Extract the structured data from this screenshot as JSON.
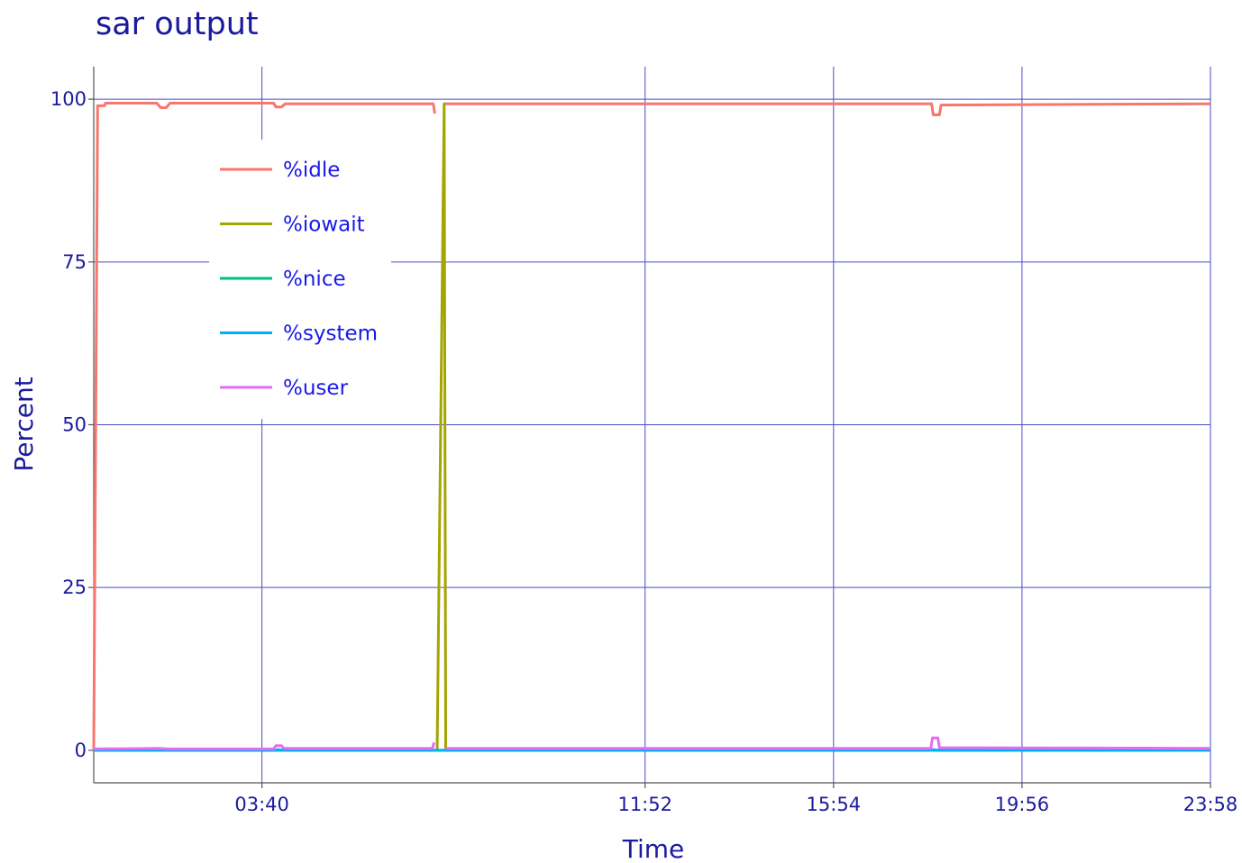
{
  "chart_data": {
    "type": "line",
    "title": "sar output",
    "xlabel": "Time",
    "ylabel": "Percent",
    "xlim": [
      "00:04",
      "23:58"
    ],
    "ylim": [
      -5,
      105
    ],
    "x_ticks": [
      "03:40",
      "11:52",
      "15:54",
      "19:56",
      "23:58"
    ],
    "y_ticks": [
      0,
      25,
      50,
      75,
      100
    ],
    "grid": true,
    "legend_position": "upper-left",
    "series": [
      {
        "name": "%idle",
        "color": "#f8766d",
        "points": [
          [
            "00:04",
            0.0
          ],
          [
            "00:09",
            99.0
          ],
          [
            "00:18",
            99.0
          ],
          [
            "00:19",
            99.4
          ],
          [
            "01:25",
            99.4
          ],
          [
            "01:30",
            98.7
          ],
          [
            "01:37",
            98.7
          ],
          [
            "01:42",
            99.4
          ],
          [
            "03:55",
            99.4
          ],
          [
            "03:58",
            98.8
          ],
          [
            "04:05",
            98.8
          ],
          [
            "04:10",
            99.3
          ],
          [
            "07:20",
            99.3
          ],
          [
            "07:22",
            97.8
          ],
          [
            "07:25",
            null
          ],
          [
            "07:34",
            99.3
          ],
          [
            "18:00",
            99.3
          ],
          [
            "18:02",
            97.6
          ],
          [
            "18:10",
            97.6
          ],
          [
            "18:12",
            99.1
          ],
          [
            "23:58",
            99.3
          ]
        ]
      },
      {
        "name": "%iowait",
        "color": "#a3a500",
        "points": [
          [
            "00:04",
            0.0
          ],
          [
            "07:25",
            0.0
          ],
          [
            "07:34",
            99.3
          ],
          [
            "07:36",
            0.0
          ],
          [
            "23:58",
            0.0
          ]
        ]
      },
      {
        "name": "%nice",
        "color": "#00bf7d",
        "points": [
          [
            "00:04",
            0.0
          ],
          [
            "23:58",
            0.0
          ]
        ]
      },
      {
        "name": "%system",
        "color": "#00b0f6",
        "points": [
          [
            "00:04",
            0.0
          ],
          [
            "03:58",
            0.0
          ],
          [
            "04:00",
            0.1
          ],
          [
            "04:08",
            0.0
          ],
          [
            "18:00",
            0.0
          ],
          [
            "18:02",
            0.1
          ],
          [
            "18:08",
            0.0
          ],
          [
            "23:58",
            0.0
          ]
        ]
      },
      {
        "name": "%user",
        "color": "#e76bf3",
        "points": [
          [
            "00:04",
            0.2
          ],
          [
            "01:28",
            0.3
          ],
          [
            "01:40",
            0.2
          ],
          [
            "03:55",
            0.2
          ],
          [
            "03:58",
            0.7
          ],
          [
            "04:05",
            0.7
          ],
          [
            "04:08",
            0.3
          ],
          [
            "07:19",
            0.3
          ],
          [
            "07:21",
            1.2
          ],
          [
            "07:22",
            null
          ],
          [
            "07:36",
            0.3
          ],
          [
            "17:59",
            0.3
          ],
          [
            "18:01",
            1.9
          ],
          [
            "18:08",
            1.9
          ],
          [
            "18:10",
            0.4
          ],
          [
            "23:58",
            0.3
          ]
        ]
      }
    ]
  }
}
